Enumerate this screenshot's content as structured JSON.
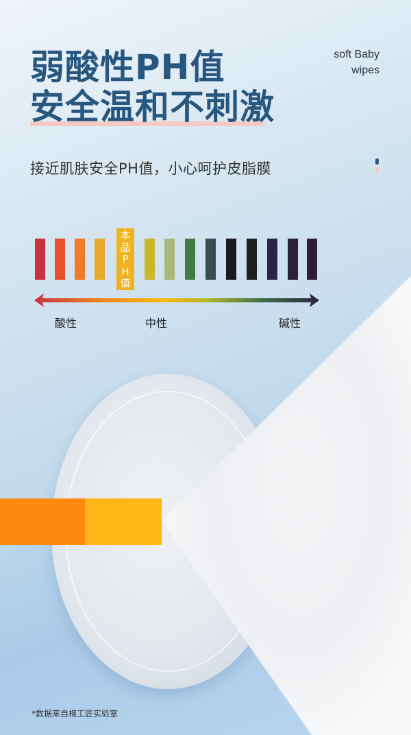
{
  "headline": {
    "line1": "弱酸性PH值",
    "line2": "安全温和不刺激"
  },
  "brand": {
    "line1": "soft Baby",
    "line2": "wipes"
  },
  "subtitle": "接近肌肤安全PH值，小心呵护皮脂膜",
  "ph_scale": {
    "bar_colors": [
      "#c8323c",
      "#e9512a",
      "#ef7a2a",
      "#e9a92a",
      "#c8b82a",
      "#a6b87a",
      "#447a46",
      "#3a4b4d",
      "#1a1a1c",
      "#1c1f1e",
      "#2a2545",
      "#2c1f3c",
      "#2e1e38"
    ],
    "product_marker": {
      "chars": [
        "本",
        "品",
        "P",
        "H",
        "值"
      ],
      "position_after_bar": 4,
      "color": "#f0b21e"
    },
    "labels": {
      "acid": "酸性",
      "neutral": "中性",
      "alkaline": "碱性"
    }
  },
  "accent_colors": {
    "orange": "#ff8a0e",
    "yellow": "#ffb619",
    "title": "#27577f",
    "underline": "#f6c9c4"
  },
  "footnote": "*数据来自棉工匠实验室"
}
